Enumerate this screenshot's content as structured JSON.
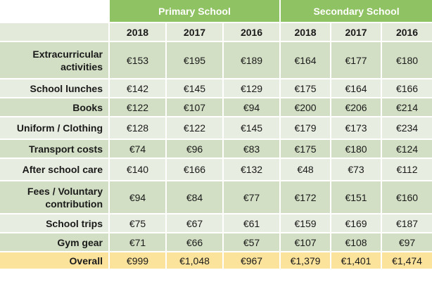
{
  "headers": {
    "groups": [
      "Primary School",
      "Secondary School"
    ],
    "years": [
      "2018",
      "2017",
      "2016",
      "2018",
      "2017",
      "2016"
    ]
  },
  "rows": [
    {
      "label": "Extracurricular activities",
      "values": [
        "€153",
        "€195",
        "€189",
        "€164",
        "€177",
        "€180"
      ]
    },
    {
      "label": "School lunches",
      "values": [
        "€142",
        "€145",
        "€129",
        "€175",
        "€164",
        "€166"
      ]
    },
    {
      "label": "Books",
      "values": [
        "€122",
        "€107",
        "€94",
        "€200",
        "€206",
        "€214"
      ]
    },
    {
      "label": "Uniform  / Clothing",
      "values": [
        "€128",
        "€122",
        "€145",
        "€179",
        "€173",
        "€234"
      ]
    },
    {
      "label": "Transport costs",
      "values": [
        "€74",
        "€96",
        "€83",
        "€175",
        "€180",
        "€124"
      ]
    },
    {
      "label": "After school care",
      "values": [
        "€140",
        "€166",
        "€132",
        "€48",
        "€73",
        "€112"
      ]
    },
    {
      "label": "Fees / Voluntary contribution",
      "values": [
        "€94",
        "€84",
        "€77",
        "€172",
        "€151",
        "€160"
      ]
    },
    {
      "label": "School trips",
      "values": [
        "€75",
        "€67",
        "€61",
        "€159",
        "€169",
        "€187"
      ]
    },
    {
      "label": "Gym gear",
      "values": [
        "€71",
        "€66",
        "€57",
        "€107",
        "€108",
        "€97"
      ]
    }
  ],
  "overall": {
    "label": "Overall",
    "values": [
      "€999",
      "€1,048",
      "€967",
      "€1,379",
      "€1,401",
      "€1,474"
    ]
  },
  "colors": {
    "group_header": "#8fc262",
    "year_header": "#e3ead9",
    "row_dark": "#d2dfc4",
    "row_light": "#e7ede0",
    "overall_row": "#fbe39b"
  }
}
